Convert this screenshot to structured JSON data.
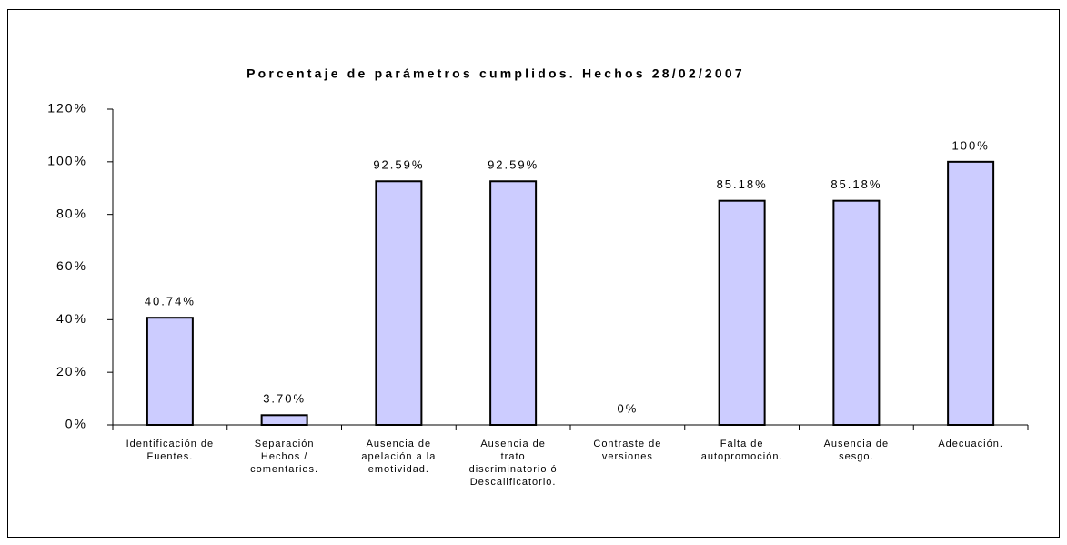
{
  "chart_data": {
    "type": "bar",
    "title": "Porcentaje de parámetros cumplidos. Hechos 28/02/2007",
    "categories": [
      "Identificación de\nFuentes.",
      "Separación\nHechos /\ncomentarios.",
      "Ausencia de\napelación a la\nemotividad.",
      "Ausencia de\ntrato\ndiscriminatorio ó\nDescalificatorio.",
      "Contraste de\nversiones",
      "Falta de\nautopromoción.",
      "Ausencia de\nsesgo.",
      "Adecuación."
    ],
    "values": [
      40.74,
      3.7,
      92.59,
      92.59,
      0,
      85.18,
      85.18,
      100
    ],
    "value_labels": [
      "40.74%",
      "3.70%",
      "92.59%",
      "92.59%",
      "0%",
      "85.18%",
      "85.18%",
      "100%"
    ],
    "color": "#ccccff",
    "ylim": [
      0,
      120
    ],
    "yticks": [
      {
        "value": 0,
        "label": "0%"
      },
      {
        "value": 20,
        "label": "20%"
      },
      {
        "value": 40,
        "label": "40%"
      },
      {
        "value": 60,
        "label": "60%"
      },
      {
        "value": 80,
        "label": "80%"
      },
      {
        "value": 100,
        "label": "100%"
      },
      {
        "value": 120,
        "label": "120%"
      }
    ],
    "grid": false
  }
}
